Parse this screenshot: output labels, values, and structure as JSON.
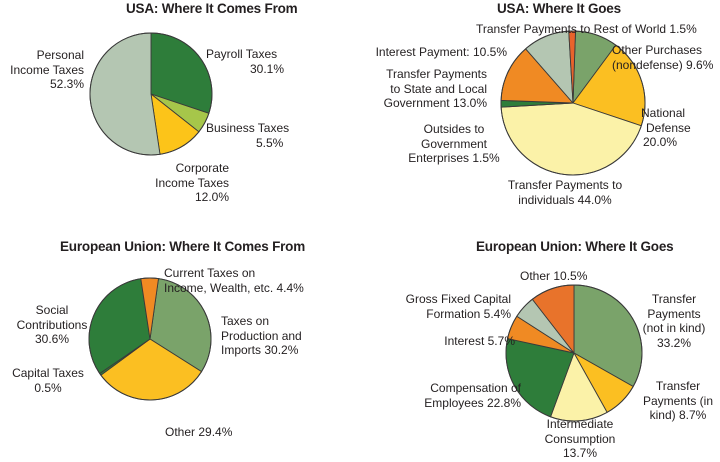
{
  "chart_data": [
    {
      "type": "pie",
      "title": "USA: Where It Comes From",
      "slices": [
        {
          "label": "Payroll Taxes",
          "value": 30.1,
          "value_text": "30.1%",
          "color": "#2e7d3a"
        },
        {
          "label": "Business Taxes",
          "value": 5.5,
          "value_text": "5.5%",
          "color": "#a6c64a"
        },
        {
          "label": "Corporate Income Taxes",
          "value": 12.0,
          "value_text": "12.0%",
          "color": "#fcc419"
        },
        {
          "label": "Personal Income Taxes",
          "value": 52.3,
          "value_text": "52.3%",
          "color": "#b4c6b2"
        }
      ]
    },
    {
      "type": "pie",
      "title": "USA: Where It Goes",
      "slices": [
        {
          "label": "Other Purchases (nondefense)",
          "value": 9.6,
          "value_text": "9.6%",
          "color": "#7aa36a"
        },
        {
          "label": "National Defense",
          "value": 20.0,
          "value_text": "20.0%",
          "color": "#fbbf22"
        },
        {
          "label": "Transfer Payments to individuals",
          "value": 44.0,
          "value_text": "44.0%",
          "color": "#fbf2a8"
        },
        {
          "label": "Outsides to Government Enterprises",
          "value": 1.5,
          "value_text": "1.5%",
          "color": "#2e7d3a"
        },
        {
          "label": "Transfer Payments to State and Local Government",
          "value": 13.0,
          "value_text": "13.0%",
          "color": "#f08a23"
        },
        {
          "label": "Interest Payment",
          "value": 10.5,
          "value_text": "10.5%",
          "color": "#b4c6b2"
        },
        {
          "label": "Transfer Payments to Rest of World",
          "value": 1.5,
          "value_text": "1.5%",
          "color": "#e8632b"
        }
      ]
    },
    {
      "type": "pie",
      "title": "European Union: Where It Comes From",
      "slices": [
        {
          "label": "Taxes on Production and Imports",
          "value": 30.2,
          "value_text": "30.2%",
          "color": "#7aa36a"
        },
        {
          "label": "Other",
          "value": 29.4,
          "value_text": "29.4%",
          "color": "#fbbf22"
        },
        {
          "label": "Capital Taxes",
          "value": 0.5,
          "value_text": "0.5%",
          "color": "#2e7d3a"
        },
        {
          "label": "Social Contributions",
          "value": 30.6,
          "value_text": "30.6%",
          "color": "#2e7d3a"
        },
        {
          "label": "Current Taxes on Income, Wealth, etc.",
          "value": 4.4,
          "value_text": "4.4%",
          "color": "#f08a23"
        }
      ]
    },
    {
      "type": "pie",
      "title": "European Union: Where It Goes",
      "slices": [
        {
          "label": "Transfer Payments (not in kind)",
          "value": 33.2,
          "value_text": "33.2%",
          "color": "#7aa36a"
        },
        {
          "label": "Transfer Payments (in kind)",
          "value": 8.7,
          "value_text": "8.7%",
          "color": "#fbbf22"
        },
        {
          "label": "Intermediate Consumption",
          "value": 13.7,
          "value_text": "13.7%",
          "color": "#fbf2a8"
        },
        {
          "label": "Compensation of Employees",
          "value": 22.8,
          "value_text": "22.8%",
          "color": "#2e7d3a"
        },
        {
          "label": "Interest",
          "value": 5.7,
          "value_text": "5.7%",
          "color": "#f08a23"
        },
        {
          "label": "Gross Fixed Capital Formation",
          "value": 5.4,
          "value_text": "5.4%",
          "color": "#b4c6b2"
        },
        {
          "label": "Other",
          "value": 10.5,
          "value_text": "10.5%",
          "color": "#e8732b"
        }
      ]
    }
  ],
  "labels": {
    "usa_from": {
      "payroll": [
        "Payroll Taxes",
        "30.1%"
      ],
      "business": [
        "Business Taxes",
        "5.5%"
      ],
      "corporate": [
        "Corporate",
        "Income Taxes",
        "12.0%"
      ],
      "personal": [
        "Personal",
        "Income Taxes",
        "52.3%"
      ]
    },
    "usa_goes": {
      "rest_world": [
        "Transfer Payments to Rest of World 1.5%"
      ],
      "other_purchases": [
        "Other Purchases",
        "(nondefense) 9.6%"
      ],
      "interest": [
        "Interest Payment: 10.5%"
      ],
      "state_local": [
        "Transfer Payments",
        "to State and Local",
        "Government 13.0%"
      ],
      "outsides": [
        "Outsides to",
        "Government",
        "Enterprises 1.5%"
      ],
      "defense": [
        "National",
        "Defense",
        "20.0%"
      ],
      "individuals": [
        "Transfer Payments to",
        "individuals 44.0%"
      ]
    },
    "eu_from": {
      "current_taxes": [
        "Current Taxes on",
        "Income, Wealth, etc. 4.4%"
      ],
      "social": [
        "Social",
        "Contributions",
        "30.6%"
      ],
      "production": [
        "Taxes on",
        "Production and",
        "Imports 30.2%"
      ],
      "capital": [
        "Capital Taxes",
        "0.5%"
      ],
      "other": [
        "Other 29.4%"
      ]
    },
    "eu_goes": {
      "other": [
        "Other 10.5%"
      ],
      "gfcf": [
        "Gross Fixed Capital",
        "Formation 5.4%"
      ],
      "not_in_kind": [
        "Transfer",
        "Payments",
        "(not in kind)",
        "33.2%"
      ],
      "interest": [
        "Interest 5.7%"
      ],
      "compensation": [
        "Compensation of",
        "Employees 22.8%"
      ],
      "in_kind": [
        "Transfer",
        "Payments  (in",
        "kind) 8.7%"
      ],
      "intermediate": [
        "Intermediate",
        "Consumption",
        "13.7%"
      ]
    }
  }
}
